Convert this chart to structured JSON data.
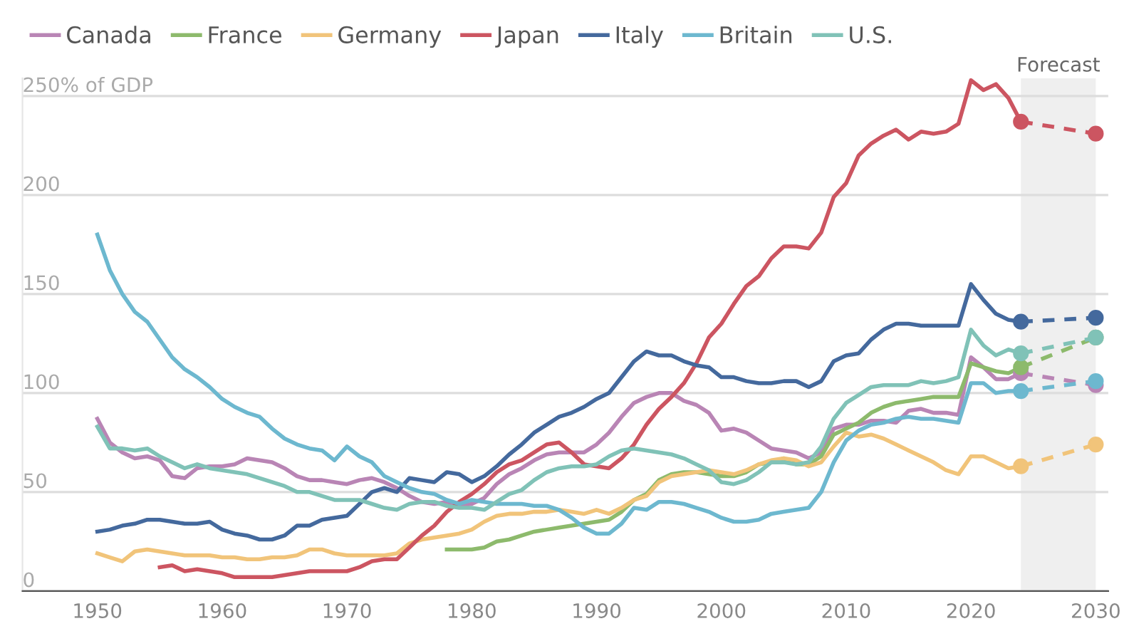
{
  "chart_data": {
    "type": "line",
    "xlim": [
      1944,
      2031
    ],
    "xticks": [
      1950,
      1960,
      1970,
      1980,
      1990,
      2000,
      2010,
      2020,
      2030
    ],
    "ylim": [
      0,
      259
    ],
    "yticks": [
      0,
      50,
      100,
      150,
      200,
      {
        "value": 250,
        "label": "250% of GDP"
      }
    ],
    "grid": "y",
    "legend": "top left",
    "bands": [
      {
        "axis": "x",
        "from": 2024,
        "to": 2030,
        "label": "Forecast",
        "color": "#efefef"
      }
    ],
    "series": [
      {
        "name": "Canada",
        "color": "#b985b5",
        "x": [
          1950,
          1951,
          1952,
          1953,
          1954,
          1955,
          1956,
          1957,
          1958,
          1959,
          1960,
          1961,
          1962,
          1963,
          1964,
          1965,
          1966,
          1967,
          1968,
          1969,
          1970,
          1971,
          1972,
          1973,
          1974,
          1975,
          1976,
          1977,
          1978,
          1979,
          1980,
          1981,
          1982,
          1983,
          1984,
          1985,
          1986,
          1987,
          1988,
          1989,
          1990,
          1991,
          1992,
          1993,
          1994,
          1995,
          1996,
          1997,
          1998,
          1999,
          2000,
          2001,
          2002,
          2003,
          2004,
          2005,
          2006,
          2007,
          2008,
          2009,
          2010,
          2011,
          2012,
          2013,
          2014,
          2015,
          2016,
          2017,
          2018,
          2019,
          2020,
          2021,
          2022,
          2023,
          2024
        ],
        "values": [
          87,
          75,
          70,
          67,
          68,
          66,
          58,
          57,
          62,
          63,
          63,
          64,
          67,
          66,
          65,
          62,
          58,
          56,
          56,
          55,
          54,
          56,
          57,
          55,
          52,
          48,
          45,
          44,
          45,
          43,
          44,
          47,
          54,
          59,
          62,
          66,
          69,
          70,
          70,
          70,
          74,
          80,
          88,
          95,
          98,
          100,
          100,
          96,
          94,
          90,
          81,
          82,
          80,
          76,
          72,
          71,
          70,
          67,
          70,
          82,
          84,
          84,
          86,
          86,
          85,
          91,
          92,
          90,
          90,
          89,
          118,
          113,
          107,
          107,
          110
        ]
      },
      {
        "name": "France",
        "color": "#8dba6c",
        "x": [
          1978,
          1979,
          1980,
          1981,
          1982,
          1983,
          1984,
          1985,
          1986,
          1987,
          1988,
          1989,
          1990,
          1991,
          1992,
          1993,
          1994,
          1995,
          1996,
          1997,
          1998,
          1999,
          2000,
          2001,
          2002,
          2003,
          2004,
          2005,
          2006,
          2007,
          2008,
          2009,
          2010,
          2011,
          2012,
          2013,
          2014,
          2015,
          2016,
          2017,
          2018,
          2019,
          2020,
          2021,
          2022,
          2023,
          2024
        ],
        "values": [
          21,
          21,
          21,
          22,
          25,
          26,
          28,
          30,
          31,
          32,
          33,
          34,
          35,
          36,
          40,
          46,
          49,
          56,
          59,
          60,
          60,
          59,
          58,
          58,
          60,
          64,
          65,
          67,
          64,
          64,
          68,
          79,
          82,
          85,
          90,
          93,
          95,
          96,
          97,
          98,
          98,
          98,
          115,
          113,
          111,
          110,
          113
        ]
      },
      {
        "name": "Germany",
        "color": "#f1c47a",
        "x": [
          1950,
          1951,
          1952,
          1953,
          1954,
          1955,
          1956,
          1957,
          1958,
          1959,
          1960,
          1961,
          1962,
          1963,
          1964,
          1965,
          1966,
          1967,
          1968,
          1969,
          1970,
          1971,
          1972,
          1973,
          1974,
          1975,
          1976,
          1977,
          1978,
          1979,
          1980,
          1981,
          1982,
          1983,
          1984,
          1985,
          1986,
          1987,
          1988,
          1989,
          1990,
          1991,
          1992,
          1993,
          1994,
          1995,
          1996,
          1997,
          1998,
          1999,
          2000,
          2001,
          2002,
          2003,
          2004,
          2005,
          2006,
          2007,
          2008,
          2009,
          2010,
          2011,
          2012,
          2013,
          2014,
          2015,
          2016,
          2017,
          2018,
          2019,
          2020,
          2021,
          2022,
          2023,
          2024
        ],
        "values": [
          19,
          17,
          15,
          20,
          21,
          20,
          19,
          18,
          18,
          18,
          17,
          17,
          16,
          16,
          17,
          17,
          18,
          21,
          21,
          19,
          18,
          18,
          18,
          18,
          19,
          24,
          26,
          27,
          28,
          29,
          31,
          35,
          38,
          39,
          39,
          40,
          40,
          41,
          40,
          39,
          41,
          39,
          42,
          46,
          48,
          55,
          58,
          59,
          60,
          61,
          60,
          59,
          61,
          64,
          66,
          67,
          66,
          63,
          65,
          73,
          80,
          78,
          79,
          77,
          74,
          71,
          68,
          65,
          61,
          59,
          68,
          68,
          65,
          62,
          63
        ]
      },
      {
        "name": "Japan",
        "color": "#cc5561",
        "x": [
          1955,
          1956,
          1957,
          1958,
          1959,
          1960,
          1961,
          1962,
          1963,
          1964,
          1965,
          1966,
          1967,
          1968,
          1969,
          1970,
          1971,
          1972,
          1973,
          1974,
          1975,
          1976,
          1977,
          1978,
          1979,
          1980,
          1981,
          1982,
          1983,
          1984,
          1985,
          1986,
          1987,
          1988,
          1989,
          1990,
          1991,
          1992,
          1993,
          1994,
          1995,
          1996,
          1997,
          1998,
          1999,
          2000,
          2001,
          2002,
          2003,
          2004,
          2005,
          2006,
          2007,
          2008,
          2009,
          2010,
          2011,
          2012,
          2013,
          2014,
          2015,
          2016,
          2017,
          2018,
          2019,
          2020,
          2021,
          2022,
          2023,
          2024
        ],
        "values": [
          12,
          13,
          10,
          11,
          10,
          9,
          7,
          7,
          7,
          7,
          8,
          9,
          10,
          10,
          10,
          10,
          12,
          15,
          16,
          16,
          22,
          28,
          33,
          40,
          45,
          49,
          54,
          60,
          64,
          66,
          70,
          74,
          75,
          70,
          64,
          63,
          62,
          67,
          74,
          84,
          92,
          98,
          105,
          115,
          128,
          135,
          145,
          154,
          159,
          168,
          174,
          174,
          173,
          181,
          199,
          206,
          220,
          226,
          230,
          233,
          228,
          232,
          231,
          232,
          236,
          258,
          253,
          256,
          249,
          237
        ]
      },
      {
        "name": "Italy",
        "color": "#44699d",
        "x": [
          1950,
          1951,
          1952,
          1953,
          1954,
          1955,
          1956,
          1957,
          1958,
          1959,
          1960,
          1961,
          1962,
          1963,
          1964,
          1965,
          1966,
          1967,
          1968,
          1969,
          1970,
          1971,
          1972,
          1973,
          1974,
          1975,
          1976,
          1977,
          1978,
          1979,
          1980,
          1981,
          1982,
          1983,
          1984,
          1985,
          1986,
          1987,
          1988,
          1989,
          1990,
          1991,
          1992,
          1993,
          1994,
          1995,
          1996,
          1997,
          1998,
          1999,
          2000,
          2001,
          2002,
          2003,
          2004,
          2005,
          2006,
          2007,
          2008,
          2009,
          2010,
          2011,
          2012,
          2013,
          2014,
          2015,
          2016,
          2017,
          2018,
          2019,
          2020,
          2021,
          2022,
          2023,
          2024
        ],
        "values": [
          30,
          31,
          33,
          34,
          36,
          36,
          35,
          34,
          34,
          35,
          31,
          29,
          28,
          26,
          26,
          28,
          33,
          33,
          36,
          37,
          38,
          44,
          50,
          52,
          50,
          57,
          56,
          55,
          60,
          59,
          55,
          58,
          63,
          69,
          74,
          80,
          84,
          88,
          90,
          93,
          97,
          100,
          108,
          116,
          121,
          119,
          119,
          116,
          114,
          113,
          108,
          108,
          106,
          105,
          105,
          106,
          106,
          103,
          106,
          116,
          119,
          120,
          127,
          132,
          135,
          135,
          134,
          134,
          134,
          134,
          155,
          147,
          140,
          137,
          136
        ]
      },
      {
        "name": "Britain",
        "color": "#6db8cf",
        "x": [
          1950,
          1951,
          1952,
          1953,
          1954,
          1955,
          1956,
          1957,
          1958,
          1959,
          1960,
          1961,
          1962,
          1963,
          1964,
          1965,
          1966,
          1967,
          1968,
          1969,
          1970,
          1971,
          1972,
          1973,
          1974,
          1975,
          1976,
          1977,
          1978,
          1979,
          1980,
          1981,
          1982,
          1983,
          1984,
          1985,
          1986,
          1987,
          1988,
          1989,
          1990,
          1991,
          1992,
          1993,
          1994,
          1995,
          1996,
          1997,
          1998,
          1999,
          2000,
          2001,
          2002,
          2003,
          2004,
          2005,
          2006,
          2007,
          2008,
          2009,
          2010,
          2011,
          2012,
          2013,
          2014,
          2015,
          2016,
          2017,
          2018,
          2019,
          2020,
          2021,
          2022,
          2023,
          2024
        ],
        "values": [
          180,
          162,
          150,
          141,
          136,
          127,
          118,
          112,
          108,
          103,
          97,
          93,
          90,
          88,
          82,
          77,
          74,
          72,
          71,
          66,
          73,
          68,
          65,
          58,
          55,
          52,
          50,
          49,
          46,
          44,
          46,
          45,
          44,
          44,
          44,
          43,
          43,
          41,
          37,
          32,
          29,
          29,
          34,
          42,
          41,
          45,
          45,
          44,
          42,
          40,
          37,
          35,
          35,
          36,
          39,
          40,
          41,
          42,
          50,
          65,
          76,
          81,
          84,
          85,
          87,
          88,
          87,
          87,
          86,
          85,
          105,
          105,
          100,
          101,
          101
        ]
      },
      {
        "name": "U.S.",
        "color": "#80c2b7",
        "x": [
          1950,
          1951,
          1952,
          1953,
          1954,
          1955,
          1956,
          1957,
          1958,
          1959,
          1960,
          1961,
          1962,
          1963,
          1964,
          1965,
          1966,
          1967,
          1968,
          1969,
          1970,
          1971,
          1972,
          1973,
          1974,
          1975,
          1976,
          1977,
          1978,
          1979,
          1980,
          1981,
          1982,
          1983,
          1984,
          1985,
          1986,
          1987,
          1988,
          1989,
          1990,
          1991,
          1992,
          1993,
          1994,
          1995,
          1996,
          1997,
          1998,
          1999,
          2000,
          2001,
          2002,
          2003,
          2004,
          2005,
          2006,
          2007,
          2008,
          2009,
          2010,
          2011,
          2012,
          2013,
          2014,
          2015,
          2016,
          2017,
          2018,
          2019,
          2020,
          2021,
          2022,
          2023,
          2024
        ],
        "values": [
          83,
          72,
          72,
          71,
          72,
          68,
          65,
          62,
          64,
          62,
          61,
          60,
          59,
          57,
          55,
          53,
          50,
          50,
          48,
          46,
          46,
          46,
          44,
          42,
          41,
          44,
          45,
          45,
          43,
          42,
          42,
          41,
          45,
          49,
          51,
          56,
          60,
          62,
          63,
          63,
          64,
          68,
          71,
          72,
          71,
          70,
          69,
          67,
          64,
          61,
          55,
          54,
          56,
          60,
          65,
          65,
          64,
          65,
          73,
          87,
          95,
          99,
          103,
          104,
          104,
          104,
          106,
          105,
          106,
          108,
          132,
          124,
          119,
          122,
          120
        ]
      },
      {
        "color": "#b985b5",
        "x": [
          2024,
          2030
        ],
        "values": [
          110,
          104
        ],
        "line_style": "dashed",
        "marker": "circle"
      },
      {
        "color": "#8dba6c",
        "x": [
          2024,
          2030
        ],
        "values": [
          113,
          128
        ],
        "line_style": "dashed",
        "marker": "circle"
      },
      {
        "color": "#f1c47a",
        "x": [
          2024,
          2030
        ],
        "values": [
          63,
          74
        ],
        "line_style": "dashed",
        "marker": "circle"
      },
      {
        "color": "#cc5561",
        "x": [
          2024,
          2030
        ],
        "values": [
          237,
          231
        ],
        "line_style": "dashed",
        "marker": "circle"
      },
      {
        "color": "#44699d",
        "x": [
          2024,
          2030
        ],
        "values": [
          136,
          138
        ],
        "line_style": "dashed",
        "marker": "circle"
      },
      {
        "color": "#6db8cf",
        "x": [
          2024,
          2030
        ],
        "values": [
          101,
          106
        ],
        "line_style": "dashed",
        "marker": "circle"
      },
      {
        "color": "#80c2b7",
        "x": [
          2024,
          2030
        ],
        "values": [
          120,
          128
        ],
        "line_style": "dashed",
        "marker": "circle"
      }
    ]
  }
}
